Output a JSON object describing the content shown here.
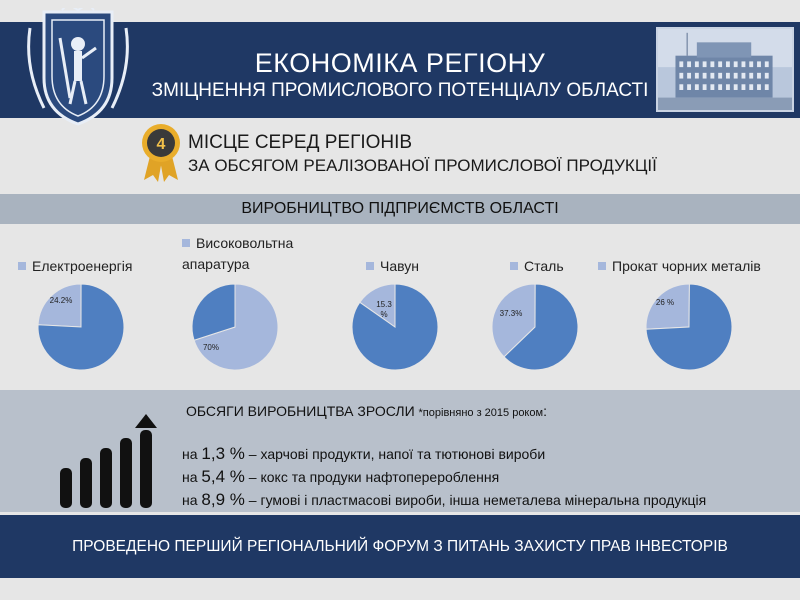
{
  "header": {
    "title": "ЕКОНОМІКА РЕГІОНУ",
    "subtitle": "ЗМІЦНЕННЯ ПРОМИСЛОВОГО ПОТЕНЦІАЛУ ОБЛАСТІ"
  },
  "rank": {
    "number": "4",
    "line1": "МІСЦЕ СЕРЕД РЕГІОНІВ",
    "line2": "ЗА ОБСЯГОМ РЕАЛІЗОВАНОЇ ПРОМИСЛОВОЇ ПРОДУКЦІЇ"
  },
  "production": {
    "title": "ВИРОБНИЦТВО ПІДПРИЄМСТВ ОБЛАСТІ"
  },
  "chart_data": [
    {
      "type": "pie",
      "legend": "Електроенергія",
      "categories": [
        "Електроенергія",
        ""
      ],
      "values": [
        24.2,
        75.8
      ],
      "label": "24.2%"
    },
    {
      "type": "pie",
      "legend_line1": "Високовольтна",
      "legend_line2": "апаратура",
      "categories": [
        "Високовольтна апаратура",
        ""
      ],
      "values": [
        70,
        30
      ],
      "label": "70%"
    },
    {
      "type": "pie",
      "legend": "Чавун",
      "categories": [
        "Чавун",
        ""
      ],
      "values": [
        15.3,
        84.7
      ],
      "label_line1": "15.3",
      "label_line2": "%"
    },
    {
      "type": "pie",
      "legend": "Сталь",
      "categories": [
        "Сталь",
        ""
      ],
      "values": [
        37.3,
        62.7
      ],
      "label": "37.3%"
    },
    {
      "type": "pie",
      "legend": "Прокат чорних металів",
      "categories": [
        "Прокат чорних металів",
        ""
      ],
      "values": [
        26,
        74
      ],
      "label": "26 %"
    }
  ],
  "colors": {
    "highlight": "#a5b7dc",
    "rest": "#4f7fc1",
    "navy": "#1f3864"
  },
  "growth": {
    "title": "ОБСЯГИ ВИРОБНИЦТВА  ЗРОСЛИ ",
    "note": "*порівняно з 2015 роком",
    "colon": ":",
    "items": [
      {
        "prefix": "на ",
        "value": "1,3 %",
        "text": " – харчові продукти, напої та тютюнові вироби"
      },
      {
        "prefix": "на ",
        "value": "5,4 %",
        "text": " – кокс та продуки нафтоперероблення"
      },
      {
        "prefix": "на ",
        "value": "8,9 %",
        "text": " – гумові і пластмасові вироби, інша неметалева мінеральна продукція"
      }
    ]
  },
  "footer": {
    "text": "ПРОВЕДЕНО ПЕРШИЙ РЕГІОНАЛЬНИЙ ФОРУМ З ПИТАНЬ ЗАХИСТУ ПРАВ ІНВЕСТОРІВ"
  }
}
